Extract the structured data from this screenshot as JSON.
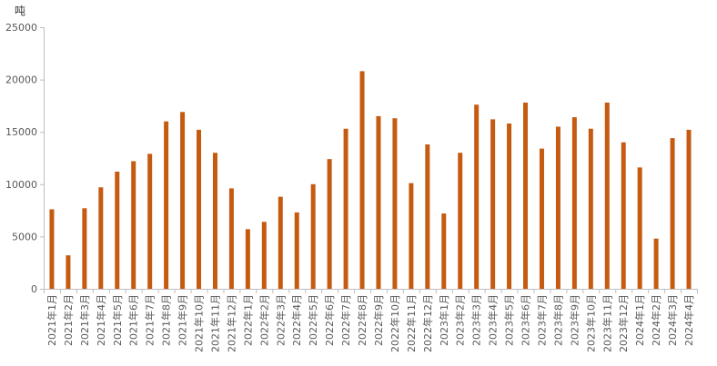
{
  "chart_data": {
    "type": "bar",
    "unit": "吨",
    "ylim": [
      0,
      25000
    ],
    "yticks": [
      0,
      5000,
      10000,
      15000,
      20000,
      25000
    ],
    "grid": false,
    "legend": "none",
    "bar_color": "#c55a11",
    "categories": [
      "2021年1月",
      "2021年2月",
      "2021年3月",
      "2021年4月",
      "2021年5月",
      "2021年6月",
      "2021年7月",
      "2021年8月",
      "2021年9月",
      "2021年10月",
      "2021年11月",
      "2021年12月",
      "2022年1月",
      "2022年2月",
      "2022年3月",
      "2022年4月",
      "2022年5月",
      "2022年6月",
      "2022年7月",
      "2022年8月",
      "2022年9月",
      "2022年10月",
      "2022年11月",
      "2022年12月",
      "2023年1月",
      "2023年2月",
      "2023年3月",
      "2023年4月",
      "2023年5月",
      "2023年6月",
      "2023年7月",
      "2023年8月",
      "2023年9月",
      "2023年10月",
      "2023年11月",
      "2023年12月",
      "2024年1月",
      "2024年2月",
      "2024年3月",
      "2024年4月"
    ],
    "values": [
      7600,
      3200,
      7700,
      9700,
      11200,
      12200,
      12900,
      16000,
      16900,
      15200,
      13000,
      9600,
      5700,
      6400,
      8800,
      7300,
      10000,
      12400,
      15300,
      20800,
      16500,
      16300,
      10100,
      13800,
      7200,
      13000,
      17600,
      16200,
      15800,
      17800,
      13400,
      15500,
      16400,
      15300,
      17800,
      14000,
      11600,
      4800,
      14400,
      15200
    ]
  }
}
